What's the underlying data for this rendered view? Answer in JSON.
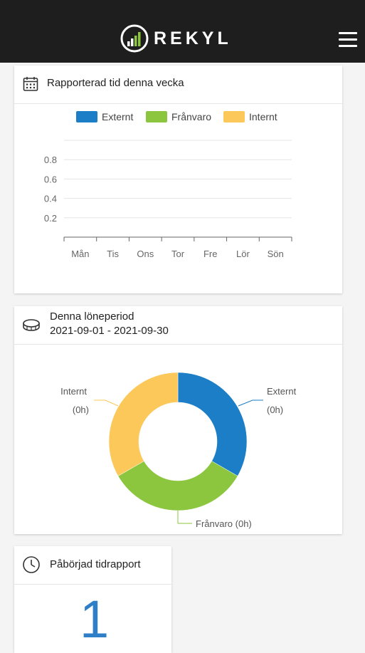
{
  "header": {
    "logo_text": "REKYL",
    "logo_icon": "rekyl-logo-icon",
    "menu_icon": "hamburger-menu-icon"
  },
  "weekly_card": {
    "title": "Rapporterad tid denna vecka",
    "icon": "calendar-icon"
  },
  "period_card": {
    "title": "Denna löneperiod",
    "dates": "2021-09-01 - 2021-09-30",
    "icon": "coin-icon"
  },
  "started_card": {
    "title": "Påbörjad tidrapport",
    "value": "1",
    "icon": "clock-icon"
  },
  "colors": {
    "externt": "#1b7ec6",
    "franvaro": "#8cc63f",
    "internt": "#fbc859",
    "topbar": "#1e1e1e"
  },
  "chart_data": [
    {
      "type": "bar",
      "categories": [
        "Mån",
        "Tis",
        "Ons",
        "Tor",
        "Fre",
        "Lör",
        "Sön"
      ],
      "series": [
        {
          "name": "Externt",
          "values": [
            0,
            0,
            0,
            0,
            0,
            0,
            0
          ]
        },
        {
          "name": "Frånvaro",
          "values": [
            0,
            0,
            0,
            0,
            0,
            0,
            0
          ]
        },
        {
          "name": "Internt",
          "values": [
            0,
            0,
            0,
            0,
            0,
            0,
            0
          ]
        }
      ],
      "yticks": [
        "0.2",
        "0.4",
        "0.6",
        "0.8"
      ],
      "ylim": [
        0,
        1
      ],
      "grid": true,
      "legend": "top"
    },
    {
      "type": "pie",
      "style": "donut",
      "labels": [
        "Externt",
        "Frånvaro",
        "Internt"
      ],
      "value_labels": [
        "(0h)",
        "(0h)",
        "(0h)"
      ],
      "segment_labels": [
        "Externt\n(0h)",
        "Frånvaro (0h)",
        "Internt\n(0h)"
      ],
      "values": [
        0,
        0,
        0
      ]
    }
  ]
}
